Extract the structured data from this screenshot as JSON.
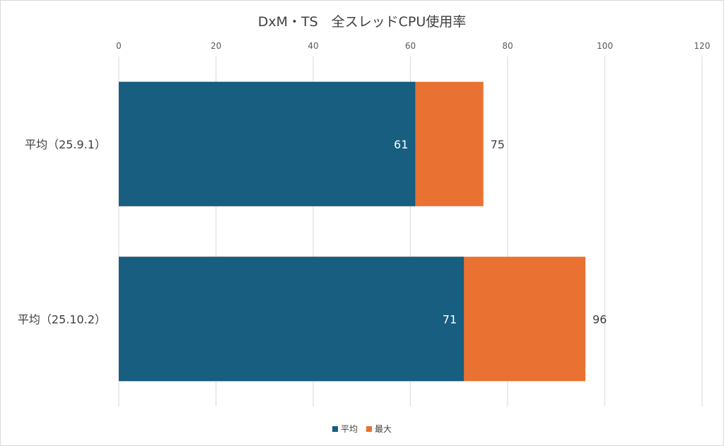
{
  "chart_data": {
    "type": "bar",
    "orientation": "horizontal",
    "title": "DxM・TS　全スレッドCPU使用率",
    "categories": [
      "平均（25.9.1）",
      "平均（25.10.2）"
    ],
    "series": [
      {
        "name": "平均",
        "values": [
          61,
          71
        ],
        "color": "#175e81",
        "label_color": "#ffffff"
      },
      {
        "name": "最大",
        "values": [
          75,
          96
        ],
        "color": "#e97132",
        "label_color": "#404040"
      }
    ],
    "xlim": [
      0,
      120
    ],
    "ticks": [
      "0",
      "20",
      "40",
      "60",
      "80",
      "100",
      "120"
    ],
    "tick_values": [
      0,
      20,
      40,
      60,
      80,
      100,
      120
    ],
    "grid": true,
    "legend_position": "bottom"
  }
}
